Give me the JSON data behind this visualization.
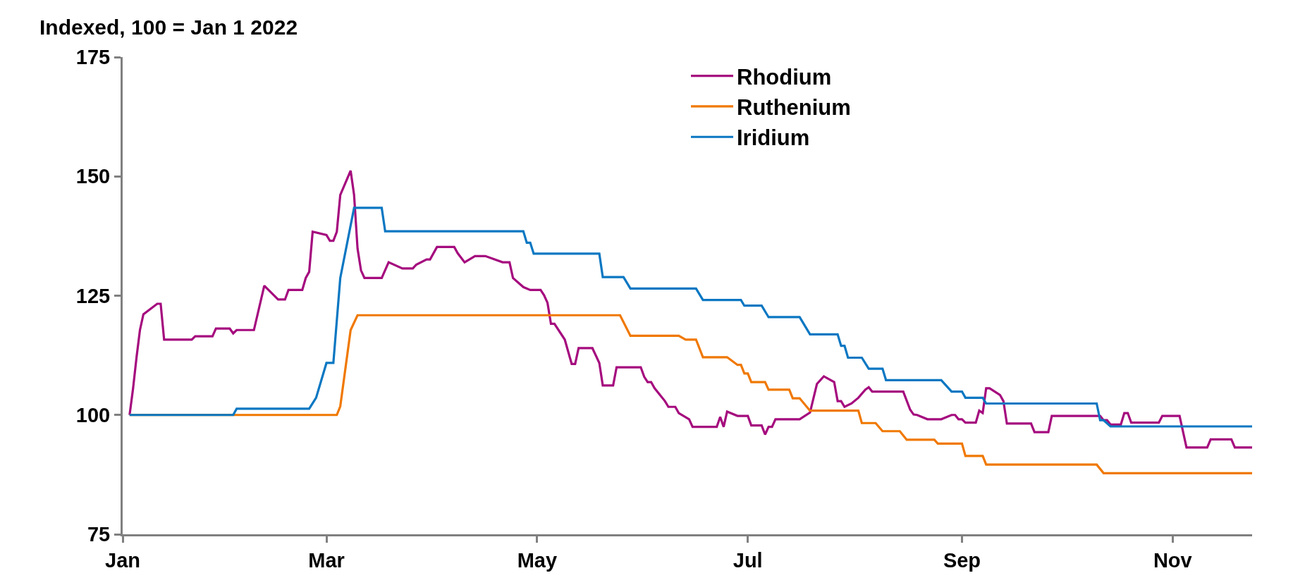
{
  "chart_data": {
    "type": "line",
    "ylabel": "Indexed, 100 = Jan 1 2022",
    "xlim": [
      "2022-01-01",
      "2022-11-24"
    ],
    "xticks": [
      {
        "value": "2022-01-01",
        "label": "Jan"
      },
      {
        "value": "2022-03-01",
        "label": "Mar"
      },
      {
        "value": "2022-05-01",
        "label": "May"
      },
      {
        "value": "2022-07-01",
        "label": "Jul"
      },
      {
        "value": "2022-09-01",
        "label": "Sep"
      },
      {
        "value": "2022-11-01",
        "label": "Nov"
      }
    ],
    "ylim": [
      75,
      175
    ],
    "yticks": [
      75,
      100,
      125,
      150,
      175
    ],
    "legend": "top",
    "marker": "none",
    "line_style": "solid",
    "series": [
      {
        "name": "Rhodium",
        "color": "#a50b7e",
        "x": [
          "2022-01-03",
          "2022-01-04",
          "2022-01-05",
          "2022-01-06",
          "2022-01-07",
          "2022-01-11",
          "2022-01-12",
          "2022-01-13",
          "2022-01-21",
          "2022-01-22",
          "2022-01-27",
          "2022-01-28",
          "2022-02-01",
          "2022-02-02",
          "2022-02-03",
          "2022-02-08",
          "2022-02-11",
          "2022-02-15",
          "2022-02-17",
          "2022-02-18",
          "2022-02-22",
          "2022-02-23",
          "2022-02-24",
          "2022-02-25",
          "2022-03-01",
          "2022-03-02",
          "2022-03-03",
          "2022-03-04",
          "2022-03-05",
          "2022-03-08",
          "2022-03-09",
          "2022-03-10",
          "2022-03-11",
          "2022-03-12",
          "2022-03-17",
          "2022-03-19",
          "2022-03-23",
          "2022-03-26",
          "2022-03-27",
          "2022-03-30",
          "2022-03-31",
          "2022-04-02",
          "2022-04-07",
          "2022-04-08",
          "2022-04-10",
          "2022-04-13",
          "2022-04-16",
          "2022-04-21",
          "2022-04-23",
          "2022-04-24",
          "2022-04-27",
          "2022-04-29",
          "2022-05-02",
          "2022-05-03",
          "2022-05-04",
          "2022-05-05",
          "2022-05-06",
          "2022-05-09",
          "2022-05-11",
          "2022-05-12",
          "2022-05-13",
          "2022-05-17",
          "2022-05-19",
          "2022-05-20",
          "2022-05-23",
          "2022-05-24",
          "2022-05-31",
          "2022-06-01",
          "2022-06-02",
          "2022-06-03",
          "2022-06-04",
          "2022-06-07",
          "2022-06-08",
          "2022-06-10",
          "2022-06-11",
          "2022-06-14",
          "2022-06-15",
          "2022-06-22",
          "2022-06-23",
          "2022-06-24",
          "2022-06-25",
          "2022-06-28",
          "2022-07-01",
          "2022-07-02",
          "2022-07-05",
          "2022-07-06",
          "2022-07-07",
          "2022-07-08",
          "2022-07-09",
          "2022-07-16",
          "2022-07-19",
          "2022-07-21",
          "2022-07-23",
          "2022-07-26",
          "2022-07-27",
          "2022-07-28",
          "2022-07-29",
          "2022-07-31",
          "2022-08-02",
          "2022-08-04",
          "2022-08-05",
          "2022-08-06",
          "2022-08-15",
          "2022-08-17",
          "2022-08-18",
          "2022-08-19",
          "2022-08-22",
          "2022-08-26",
          "2022-08-29",
          "2022-08-30",
          "2022-08-31",
          "2022-09-01",
          "2022-09-02",
          "2022-09-05",
          "2022-09-06",
          "2022-09-07",
          "2022-09-08",
          "2022-09-09",
          "2022-09-12",
          "2022-09-13",
          "2022-09-14",
          "2022-09-21",
          "2022-09-22",
          "2022-09-26",
          "2022-09-27",
          "2022-10-11",
          "2022-10-12",
          "2022-10-13",
          "2022-10-14",
          "2022-10-17",
          "2022-10-18",
          "2022-10-19",
          "2022-10-20",
          "2022-10-28",
          "2022-10-29",
          "2022-11-03",
          "2022-11-05",
          "2022-11-11",
          "2022-11-12",
          "2022-11-18",
          "2022-11-19",
          "2022-11-24"
        ],
        "values": [
          100,
          105.5,
          112,
          117.8,
          121.1,
          123.3,
          123.3,
          115.8,
          115.8,
          116.5,
          116.5,
          118.1,
          118.1,
          117.1,
          117.8,
          117.8,
          127.1,
          124.2,
          124.2,
          126.2,
          126.2,
          128.7,
          130,
          138.4,
          137.7,
          136.5,
          136.5,
          138.4,
          146.1,
          151.2,
          146.1,
          134.9,
          130.3,
          128.7,
          128.7,
          132,
          130.7,
          130.7,
          131.5,
          132.6,
          132.6,
          135.2,
          135.2,
          133.9,
          132,
          133.3,
          133.3,
          132,
          132,
          128.7,
          126.8,
          126.2,
          126.2,
          125.1,
          123.5,
          119.1,
          119.1,
          115.8,
          110.7,
          110.7,
          114,
          114,
          110.9,
          106.2,
          106.2,
          110,
          110,
          108,
          106.9,
          106.9,
          105.6,
          102.9,
          101.7,
          101.7,
          100.4,
          99.1,
          97.5,
          97.5,
          99.6,
          97.5,
          100.7,
          99.8,
          99.8,
          97.8,
          97.8,
          95.9,
          97.5,
          97.5,
          99.1,
          99.1,
          100.5,
          106.5,
          108.1,
          106.9,
          102.9,
          102.9,
          101.7,
          102.4,
          103.6,
          105.3,
          105.8,
          104.9,
          104.9,
          101.1,
          100.1,
          100,
          99.1,
          99.1,
          100,
          100,
          99.1,
          99.1,
          98.4,
          98.4,
          100.9,
          100.4,
          105.6,
          105.6,
          104.2,
          102.9,
          98.2,
          98.2,
          96.4,
          96.4,
          99.8,
          99.8,
          98.9,
          98.9,
          98,
          98,
          100.4,
          100.4,
          98.4,
          98.4,
          99.8,
          99.8,
          93.2,
          93.2,
          94.9,
          94.9,
          93.2,
          93.2
        ]
      },
      {
        "name": "Ruthenium",
        "color": "#f07800",
        "x": [
          "2022-01-03",
          "2022-03-04",
          "2022-03-05",
          "2022-03-08",
          "2022-03-10",
          "2022-05-25",
          "2022-05-28",
          "2022-06-11",
          "2022-06-13",
          "2022-06-16",
          "2022-06-18",
          "2022-06-25",
          "2022-06-28",
          "2022-06-29",
          "2022-06-30",
          "2022-07-01",
          "2022-07-02",
          "2022-07-06",
          "2022-07-07",
          "2022-07-13",
          "2022-07-14",
          "2022-07-16",
          "2022-07-19",
          "2022-08-02",
          "2022-08-03",
          "2022-08-07",
          "2022-08-09",
          "2022-08-14",
          "2022-08-16",
          "2022-08-24",
          "2022-08-25",
          "2022-09-01",
          "2022-09-02",
          "2022-09-07",
          "2022-09-08",
          "2022-10-10",
          "2022-10-12",
          "2022-11-24"
        ],
        "values": [
          100,
          100,
          101.8,
          117.8,
          120.9,
          120.9,
          116.6,
          116.6,
          115.8,
          115.8,
          112.1,
          112.1,
          110.5,
          110.5,
          108.7,
          108.7,
          106.9,
          106.9,
          105.3,
          105.3,
          103.5,
          103.5,
          100.9,
          100.9,
          98.3,
          98.3,
          96.6,
          96.6,
          94.8,
          94.8,
          94,
          94,
          91.4,
          91.4,
          89.6,
          89.6,
          87.8,
          87.8
        ]
      },
      {
        "name": "Iridium",
        "color": "#0a77c2",
        "x": [
          "2022-01-03",
          "2022-02-02",
          "2022-02-03",
          "2022-02-24",
          "2022-02-26",
          "2022-03-01",
          "2022-03-03",
          "2022-03-05",
          "2022-03-09",
          "2022-03-17",
          "2022-03-18",
          "2022-04-27",
          "2022-04-28",
          "2022-04-29",
          "2022-04-30",
          "2022-05-19",
          "2022-05-20",
          "2022-05-26",
          "2022-05-28",
          "2022-06-16",
          "2022-06-18",
          "2022-06-29",
          "2022-06-30",
          "2022-07-05",
          "2022-07-07",
          "2022-07-16",
          "2022-07-19",
          "2022-07-27",
          "2022-07-28",
          "2022-07-29",
          "2022-07-30",
          "2022-08-03",
          "2022-08-05",
          "2022-08-09",
          "2022-08-10",
          "2022-08-26",
          "2022-08-29",
          "2022-09-01",
          "2022-09-02",
          "2022-09-07",
          "2022-09-08",
          "2022-10-10",
          "2022-10-11",
          "2022-10-12",
          "2022-10-14",
          "2022-11-24"
        ],
        "values": [
          100,
          100,
          101.3,
          101.3,
          103.6,
          110.9,
          110.9,
          128.7,
          143.4,
          143.4,
          138.5,
          138.5,
          136.1,
          136.1,
          133.8,
          133.8,
          128.9,
          128.9,
          126.5,
          126.5,
          124.1,
          124.1,
          122.9,
          122.9,
          120.5,
          120.5,
          116.9,
          116.9,
          114.5,
          114.5,
          112,
          112,
          109.7,
          109.7,
          107.3,
          107.3,
          104.9,
          104.9,
          103.6,
          103.6,
          102.4,
          102.4,
          98.9,
          98.9,
          97.6,
          97.6
        ]
      }
    ]
  }
}
